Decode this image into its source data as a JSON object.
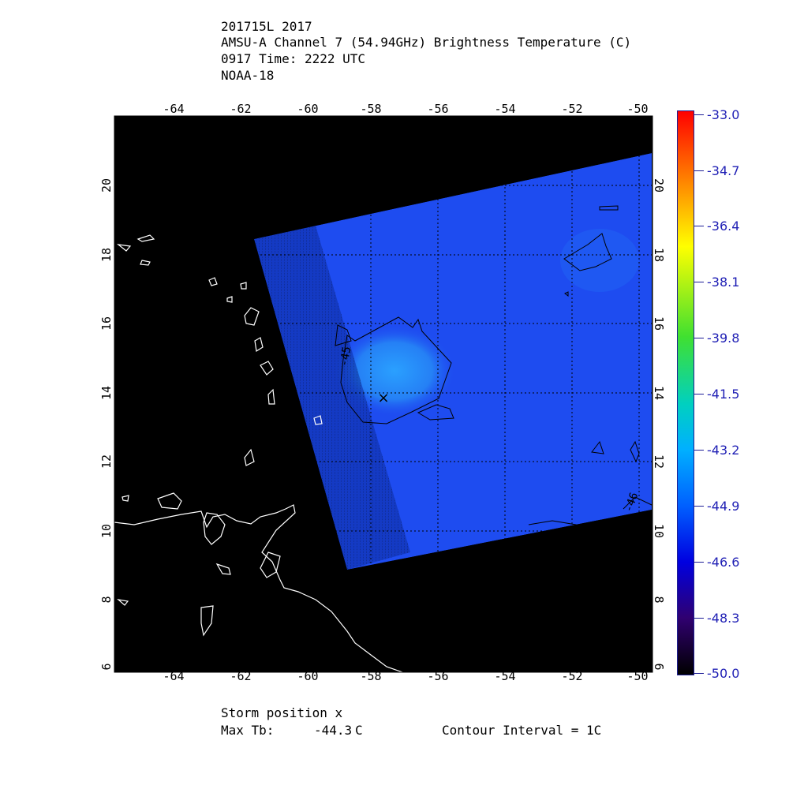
{
  "header": {
    "line1": "201715L 2017",
    "line2": "AMSU-A Channel 7 (54.94GHz) Brightness Temperature (C)",
    "line3": "0917 Time: 2222 UTC",
    "line4": "NOAA-18"
  },
  "map": {
    "lon_ticks": [
      "-64",
      "-62",
      "-60",
      "-58",
      "-56",
      "-54",
      "-52",
      "-50"
    ],
    "lat_ticks": [
      "6",
      "8",
      "10",
      "12",
      "14",
      "16",
      "18",
      "20"
    ],
    "contour_labels": [
      "-45",
      "-46"
    ],
    "storm_marker": "×"
  },
  "colorbar": {
    "labels": [
      "-33.0",
      "-34.7",
      "-36.4",
      "-38.1",
      "-39.8",
      "-41.5",
      "-43.2",
      "-44.9",
      "-46.6",
      "-48.3",
      "-50.0"
    ]
  },
  "footer": {
    "storm_position": "Storm position x",
    "max_tb_label": "Max Tb:",
    "max_tb_value": "-44.3",
    "max_tb_unit": "C",
    "contour_interval": "Contour Interval = 1C"
  },
  "colors": {
    "background": "#000000",
    "swath": "#1e46f0",
    "coast": "#ffffff",
    "colorbar_text": "#1e1eb4"
  }
}
